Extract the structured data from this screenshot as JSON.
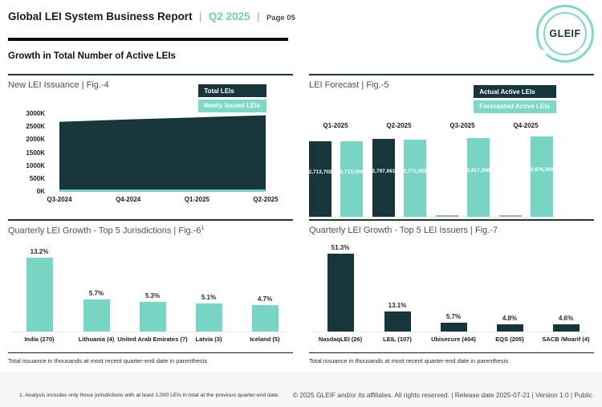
{
  "header": {
    "title": "Global LEI System Business Report",
    "divider": "|",
    "period": "Q2 2025",
    "page": "Page 05",
    "logo_text": "GLEIF"
  },
  "section": {
    "heading": "Growth in Total Number of Active LEIs"
  },
  "colors": {
    "dark": "#16363c",
    "teal": "#76d6c3",
    "accent_text": "#6fcebb",
    "zero_bar_gray": "#a9b4b6"
  },
  "chart_data": [
    {
      "id": "new_lei_issuance",
      "type": "area",
      "title": "New LEI Issuance | Fig.-4",
      "legend": [
        "Total LEIs",
        "Newly Issued LEIs"
      ],
      "x": [
        "Q3-2024",
        "Q4-2024",
        "Q1-2025",
        "Q2-2025"
      ],
      "yticks": [
        "3000K",
        "2500K",
        "2000K",
        "1500K",
        "1000K",
        "500K",
        "0K"
      ],
      "ylim": [
        0,
        3000000
      ],
      "series": [
        {
          "name": "Total LEIs",
          "color": "#16363c",
          "values": [
            2700000,
            2790000,
            2870000,
            2950000
          ]
        },
        {
          "name": "Newly Issued LEIs",
          "color": "#76d6c3",
          "values": [
            90000,
            90000,
            90000,
            90000
          ]
        }
      ],
      "legend_position": "top-right",
      "grid": false
    },
    {
      "id": "lei_forecast",
      "type": "bar",
      "title": "LEI Forecast | Fig.-5",
      "legend": [
        "Actual Active LEIs",
        "Forecasted Active LEIs"
      ],
      "categories": [
        "Q1-2025",
        "Q2-2025",
        "Q3-2025",
        "Q4-2025"
      ],
      "series": [
        {
          "name": "Actual Active LEIs",
          "color": "#16363c",
          "values": [
            2713702,
            2797061,
            null,
            null
          ],
          "labels": [
            "2,713,702",
            "2,797,061",
            "",
            ""
          ]
        },
        {
          "name": "Forecasted Active LEIs",
          "color": "#76d6c3",
          "values": [
            2713000,
            2771000,
            2817000,
            2878000
          ],
          "labels": [
            "2,713,000",
            "2,771,000",
            "2,817,000",
            "2,878,000"
          ]
        }
      ],
      "legend_position": "top-right",
      "grid": false
    },
    {
      "id": "top5_jurisdictions",
      "type": "bar",
      "title": "Quarterly LEI Growth - Top 5 Jurisdictions | Fig.-6",
      "title_superscript": "1",
      "color": "#76d6c3",
      "categories": [
        "India (270)",
        "Lithuania (4)",
        "United Arab Emirates (7)",
        "Latvia (3)",
        "Iceland (5)"
      ],
      "values": [
        13.2,
        5.7,
        5.3,
        5.1,
        4.7
      ],
      "labels": [
        "13.2%",
        "5.7%",
        "5.3%",
        "5.1%",
        "4.7%"
      ],
      "note": "Total issuance in thousands at most recent quarter-end date in parenthesis",
      "grid": false
    },
    {
      "id": "top5_issuers",
      "type": "bar",
      "title": "Quarterly LEI Growth - Top 5 LEI Issuers | Fig.-7",
      "color": "#16363c",
      "categories": [
        "NasdaqLEI (26)",
        "LEIL (107)",
        "Ubisecure (404)",
        "EQS (205)",
        "SACB /Moarif (4)"
      ],
      "values": [
        51.3,
        13.1,
        5.7,
        4.8,
        4.6
      ],
      "labels": [
        "51.3%",
        "13.1%",
        "5.7%",
        "4.8%",
        "4.6%"
      ],
      "note": "Total issuance in thousands at most recent quarter-end date in parenthesis",
      "grid": false
    }
  ],
  "footnote": "1. Analysis includes only those jurisdictions with at least 1,000 LEIs in total at the previous quarter-end date.",
  "copyright": "© 2025 GLEIF and/or its affiliates. All rights reserved.  | Release date 2025-07-21 | Version 1.0 | Public"
}
